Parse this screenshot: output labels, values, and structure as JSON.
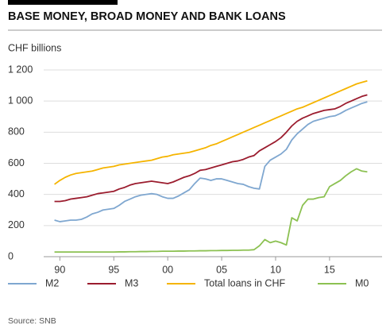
{
  "chart_data": {
    "type": "line",
    "title": "BASE MONEY, BROAD MONEY AND BANK LOANS",
    "y_axis_label": "CHF billions",
    "source": "Source: SNB",
    "x": [
      1989.5,
      1990,
      1990.5,
      1991,
      1991.5,
      1992,
      1992.5,
      1993,
      1993.5,
      1994,
      1994.5,
      1995,
      1995.5,
      1996,
      1996.5,
      1997,
      1997.5,
      1998,
      1998.5,
      1999,
      1999.5,
      2000,
      2000.5,
      2001,
      2001.5,
      2002,
      2002.5,
      2003,
      2003.5,
      2004,
      2004.5,
      2005,
      2005.5,
      2006,
      2006.5,
      2007,
      2007.5,
      2008,
      2008.5,
      2009,
      2009.5,
      2010,
      2010.5,
      2011,
      2011.5,
      2012,
      2012.5,
      2013,
      2013.5,
      2014,
      2014.5,
      2015,
      2015.5,
      2016,
      2016.5,
      2017,
      2017.5,
      2018,
      2018.5
    ],
    "series": [
      {
        "name": "M2",
        "color": "#7fa7d0",
        "values": [
          235,
          225,
          230,
          235,
          235,
          240,
          255,
          275,
          285,
          300,
          305,
          310,
          330,
          355,
          370,
          385,
          395,
          400,
          405,
          400,
          385,
          375,
          375,
          390,
          410,
          430,
          470,
          505,
          500,
          490,
          500,
          500,
          490,
          480,
          470,
          465,
          450,
          440,
          435,
          580,
          620,
          640,
          660,
          690,
          750,
          790,
          820,
          850,
          870,
          880,
          890,
          900,
          905,
          920,
          940,
          955,
          970,
          985,
          995
        ]
      },
      {
        "name": "M3",
        "color": "#9b1c2e",
        "values": [
          355,
          355,
          360,
          370,
          375,
          380,
          385,
          395,
          405,
          410,
          415,
          420,
          435,
          445,
          460,
          470,
          475,
          480,
          485,
          480,
          475,
          470,
          480,
          495,
          510,
          520,
          535,
          555,
          560,
          570,
          580,
          590,
          600,
          610,
          615,
          625,
          640,
          650,
          680,
          700,
          720,
          740,
          765,
          800,
          840,
          870,
          890,
          905,
          920,
          930,
          940,
          945,
          950,
          965,
          985,
          1000,
          1015,
          1030,
          1040
        ]
      },
      {
        "name": "Total loans in CHF",
        "color": "#f5b400",
        "values": [
          465,
          490,
          510,
          525,
          535,
          540,
          545,
          550,
          560,
          570,
          575,
          580,
          590,
          595,
          600,
          605,
          610,
          615,
          620,
          630,
          640,
          645,
          655,
          660,
          665,
          670,
          680,
          690,
          700,
          715,
          725,
          740,
          755,
          770,
          785,
          800,
          815,
          830,
          845,
          860,
          875,
          890,
          905,
          920,
          935,
          950,
          960,
          975,
          990,
          1005,
          1020,
          1035,
          1050,
          1065,
          1080,
          1095,
          1110,
          1120,
          1130
        ]
      },
      {
        "name": "M0",
        "color": "#8cc152",
        "values": [
          30,
          30,
          30,
          30,
          30,
          30,
          30,
          30,
          30,
          30,
          30,
          30,
          31,
          31,
          32,
          32,
          33,
          33,
          34,
          34,
          35,
          35,
          35,
          36,
          36,
          37,
          37,
          38,
          38,
          39,
          39,
          40,
          40,
          41,
          41,
          42,
          42,
          45,
          70,
          110,
          90,
          100,
          90,
          75,
          250,
          230,
          330,
          370,
          370,
          380,
          385,
          450,
          470,
          490,
          520,
          545,
          565,
          550,
          545
        ]
      }
    ],
    "xlim": [
      1988.5,
      2019.5
    ],
    "xticks": [
      {
        "value": 1990,
        "label": "90"
      },
      {
        "value": 1995,
        "label": "95"
      },
      {
        "value": 2000,
        "label": "00"
      },
      {
        "value": 2005,
        "label": "05"
      },
      {
        "value": 2010,
        "label": "10"
      },
      {
        "value": 2015,
        "label": "15"
      }
    ],
    "ylim": [
      0,
      1200
    ],
    "yticks": [
      0,
      200,
      400,
      600,
      800,
      {
        "value": 1000,
        "label": "1 000"
      },
      {
        "value": 1200,
        "label": "1 200"
      }
    ],
    "grid": true
  }
}
